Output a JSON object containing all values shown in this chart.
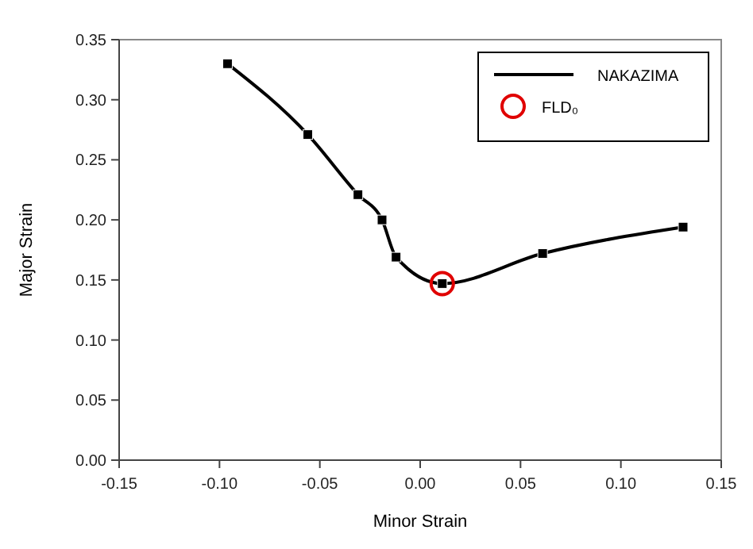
{
  "chart_data": {
    "type": "line",
    "xlabel": "Minor Strain",
    "ylabel": "Major Strain",
    "xlim": [
      -0.15,
      0.15
    ],
    "xticks": [
      {
        "value": -0.15,
        "label": "-0.15"
      },
      {
        "value": -0.1,
        "label": "-0.10"
      },
      {
        "value": -0.05,
        "label": "-0.05"
      },
      {
        "value": 0,
        "label": "0.00"
      },
      {
        "value": 0.05,
        "label": "0.05"
      },
      {
        "value": 0.1,
        "label": "0.10"
      },
      {
        "value": 0.15,
        "label": "0.15"
      }
    ],
    "ylim": [
      0,
      0.35
    ],
    "yticks": [
      {
        "value": 0,
        "label": "0.00"
      },
      {
        "value": 0.05,
        "label": "0.05"
      },
      {
        "value": 0.1,
        "label": "0.10"
      },
      {
        "value": 0.15,
        "label": "0.15"
      },
      {
        "value": 0.2,
        "label": "0.20"
      },
      {
        "value": 0.25,
        "label": "0.25"
      },
      {
        "value": 0.3,
        "label": "0.30"
      },
      {
        "value": 0.35,
        "label": "0.35"
      }
    ],
    "grid": false,
    "legend": "top right",
    "series": [
      {
        "name": "NAKAZIMA",
        "type": "line",
        "color": "#000000",
        "marker": "square",
        "x": [
          -0.096,
          -0.056,
          -0.031,
          -0.019,
          -0.012,
          0.011,
          0.061,
          0.131
        ],
        "values": [
          0.33,
          0.271,
          0.221,
          0.2,
          0.169,
          0.147,
          0.172,
          0.194
        ]
      },
      {
        "name": "FLD₀",
        "type": "scatter",
        "color": "#e00000",
        "marker": "circle",
        "x": [
          0.011
        ],
        "values": [
          0.147
        ]
      }
    ]
  }
}
